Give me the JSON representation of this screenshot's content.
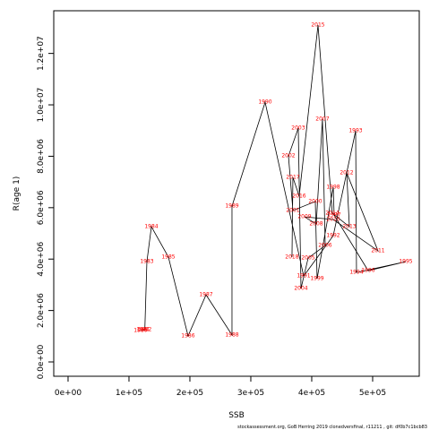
{
  "chart_data": {
    "type": "line",
    "x_label": "SSB",
    "y_label": "R(age 1)",
    "footer": "stockassessment.org, GoB Herring 2019 clonedversfinal, r11211 , git: df0b7c1bcb83",
    "color": "#000000",
    "label_color": "#ff0000",
    "x": [
      119000,
      123500,
      126000,
      129400,
      136800,
      164700,
      197000,
      226500,
      269100,
      269100,
      323500,
      386800,
      435300,
      472100,
      473500,
      554400,
      492600,
      436800,
      435300,
      408800,
      405900,
      369100,
      361800,
      377900,
      382400,
      394100,
      422100,
      417600,
      407400,
      388200,
      435300,
      508800,
      457400,
      461800,
      433800,
      410300,
      379400,
      369100,
      367600
    ],
    "values": [
      1220000,
      1250000,
      1250000,
      3900000,
      5260000,
      4080000,
      1010000,
      2610000,
      1050000,
      6060000,
      10100000,
      3340000,
      4910000,
      8990000,
      3480000,
      3900000,
      3550000,
      5710000,
      6790000,
      3240000,
      6240000,
      5890000,
      8010000,
      9090000,
      2860000,
      4040000,
      4530000,
      9440000,
      5370000,
      5640000,
      5540000,
      4320000,
      7350000,
      5260000,
      5780000,
      13100000,
      6450000,
      7180000,
      4080000
    ],
    "point_labels": [
      "1980",
      "1981",
      "1982",
      "1983",
      "1984",
      "1985",
      "1986",
      "1987",
      "1988",
      "1989",
      "1990",
      "1991",
      "1992",
      "1993",
      "1994",
      "1995",
      "1996",
      "1997",
      "1998",
      "1999",
      "2000",
      "2001",
      "2002",
      "2003",
      "2004",
      "2005",
      "2006",
      "2007",
      "2008",
      "2009",
      "2010",
      "2011",
      "2012",
      "2013",
      "2014",
      "2015",
      "2016",
      "2017",
      "2018"
    ],
    "xlim": [
      -23500,
      576500
    ],
    "xticks": [
      {
        "value": 0,
        "label": "0e+00"
      },
      {
        "value": 100000,
        "label": "1e+05"
      },
      {
        "value": 200000,
        "label": "2e+05"
      },
      {
        "value": 300000,
        "label": "3e+05"
      },
      {
        "value": 400000,
        "label": "4e+05"
      },
      {
        "value": 500000,
        "label": "5e+05"
      }
    ],
    "ylim": [
      -557000,
      13660000
    ],
    "yticks": [
      {
        "value": 0,
        "label": "0.0e+00"
      },
      {
        "value": 2000000,
        "label": "2.0e+06"
      },
      {
        "value": 4000000,
        "label": "4.0e+06"
      },
      {
        "value": 6000000,
        "label": "6.0e+06"
      },
      {
        "value": 8000000,
        "label": "8.0e+06"
      },
      {
        "value": 10000000,
        "label": "1.0e+07"
      },
      {
        "value": 12000000,
        "label": "1.2e+07"
      }
    ]
  }
}
